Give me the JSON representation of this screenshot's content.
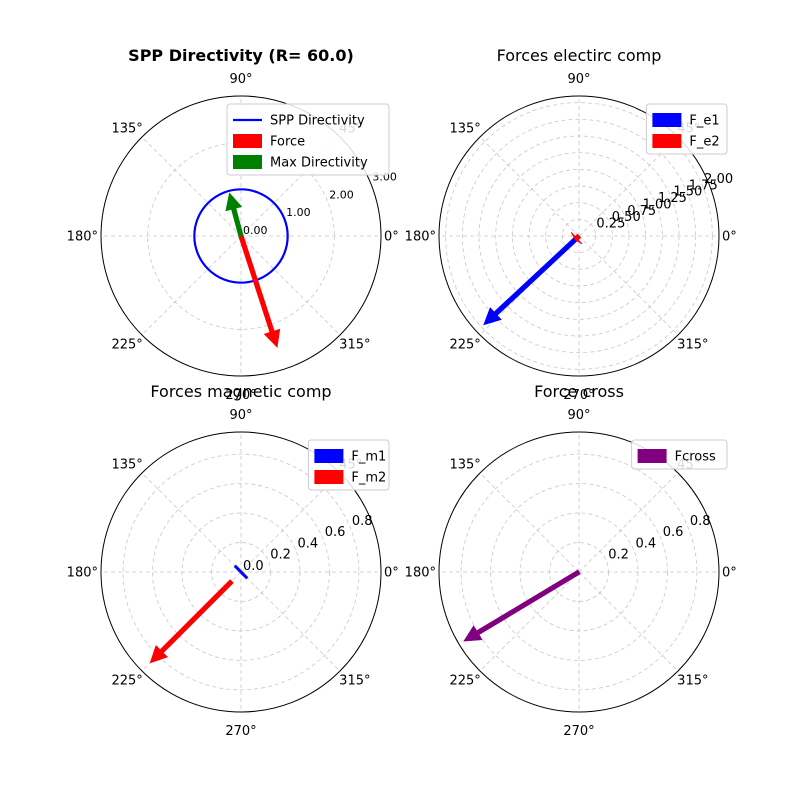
{
  "chart_data": [
    {
      "type": "polar",
      "title": "SPP Directivity (R= 60.0)",
      "title_bold": true,
      "angle_ticks": [
        "0°",
        "45°",
        "90°",
        "135°",
        "180°",
        "225°",
        "270°",
        "315°"
      ],
      "r_ticks": [
        "0.00",
        "1.00",
        "2.00",
        "3.00"
      ],
      "r_tick_values": [
        0,
        1,
        2,
        3
      ],
      "r_tick_size": "small",
      "rlim": [
        0,
        3.0
      ],
      "grid": true,
      "legend_position": "top-right",
      "legend": [
        {
          "label": "SPP Directivity",
          "color": "#0000ff",
          "kind": "line"
        },
        {
          "label": "Force",
          "color": "#ff0000",
          "kind": "patch"
        },
        {
          "label": "Max Directivity",
          "color": "#008000",
          "kind": "patch"
        }
      ],
      "series": [
        {
          "kind": "circle",
          "center_angle_deg": 0,
          "center_r": 0,
          "radius": 1.0,
          "color": "#0000ff"
        },
        {
          "kind": "arrow",
          "angle_deg": 288,
          "length": 2.5,
          "color": "#ff0000"
        },
        {
          "kind": "arrow",
          "angle_deg": 105,
          "length": 0.95,
          "color": "#008000"
        }
      ]
    },
    {
      "type": "polar",
      "title": "Forces electirc comp",
      "title_bold": false,
      "angle_ticks": [
        "0°",
        "45°",
        "90°",
        "135°",
        "180°",
        "225°",
        "270°",
        "315°"
      ],
      "r_ticks": [
        "0.25",
        "0.50",
        "0.75",
        "1.00",
        "1.25",
        "1.50",
        "1.75",
        "2.00"
      ],
      "r_tick_values": [
        0.25,
        0.5,
        0.75,
        1.0,
        1.25,
        1.5,
        1.75,
        2.0
      ],
      "r_tick_size": "normal",
      "rlim": [
        0,
        2.1
      ],
      "grid": true,
      "legend_position": "top-right",
      "legend": [
        {
          "label": "F_e1",
          "color": "#0000ff",
          "kind": "patch"
        },
        {
          "label": "F_e2",
          "color": "#ff0000",
          "kind": "patch"
        }
      ],
      "series": [
        {
          "kind": "arrow",
          "angle_deg": 223,
          "length": 1.95,
          "color": "#0000ff"
        },
        {
          "kind": "arrow",
          "angle_deg": 223,
          "length": 0.08,
          "color": "#ff0000"
        }
      ]
    },
    {
      "type": "polar",
      "title": "Forces magnetic comp",
      "title_bold": false,
      "angle_ticks": [
        "0°",
        "45°",
        "90°",
        "135°",
        "180°",
        "225°",
        "270°",
        "315°"
      ],
      "r_ticks": [
        "0.0",
        "0.2",
        "0.4",
        "0.6",
        "0.8"
      ],
      "r_tick_values": [
        0,
        0.2,
        0.4,
        0.6,
        0.8
      ],
      "r_tick_size": "normal",
      "rlim": [
        0,
        0.95
      ],
      "grid": true,
      "legend_position": "top-right",
      "legend": [
        {
          "label": "F_m1",
          "color": "#0000ff",
          "kind": "patch"
        },
        {
          "label": "F_m2",
          "color": "#ff0000",
          "kind": "patch"
        }
      ],
      "series": [
        {
          "kind": "arrow",
          "angle_deg": 225,
          "length": 0.87,
          "color": "#ff0000",
          "start_r": 0.09
        },
        {
          "kind": "segment",
          "angle_deg": 135,
          "length": 0.06,
          "color": "#0000ff"
        }
      ]
    },
    {
      "type": "polar",
      "title": "Force cross",
      "title_bold": false,
      "angle_ticks": [
        "0°",
        "45°",
        "90°",
        "135°",
        "180°",
        "225°",
        "270°",
        "315°"
      ],
      "r_ticks": [
        "0.2",
        "0.4",
        "0.6",
        "0.8"
      ],
      "r_tick_values": [
        0.2,
        0.4,
        0.6,
        0.8
      ],
      "r_tick_size": "normal",
      "rlim": [
        0,
        0.95
      ],
      "grid": true,
      "legend_position": "top-right",
      "legend": [
        {
          "label": "Fcross",
          "color": "#800080",
          "kind": "patch"
        }
      ],
      "series": [
        {
          "kind": "arrow",
          "angle_deg": 211,
          "length": 0.91,
          "color": "#800080"
        }
      ]
    }
  ]
}
